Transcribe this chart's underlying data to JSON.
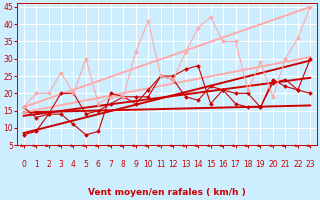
{
  "background_color": "#cceeff",
  "grid_color": "#ffffff",
  "xlabel": "Vent moyen/en rafales ( km/h )",
  "ylabel_ticks": [
    5,
    10,
    15,
    20,
    25,
    30,
    35,
    40,
    45
  ],
  "xlim": [
    -0.5,
    23.5
  ],
  "ylim": [
    5,
    46
  ],
  "x_ticks": [
    0,
    1,
    2,
    3,
    4,
    5,
    6,
    7,
    8,
    9,
    10,
    11,
    12,
    13,
    14,
    15,
    16,
    17,
    18,
    19,
    20,
    21,
    22,
    23
  ],
  "series": [
    {
      "x": [
        0,
        1,
        2,
        3,
        4,
        5,
        6,
        7,
        8,
        9,
        10,
        11,
        12,
        13,
        14,
        15,
        16,
        17,
        18,
        19,
        20,
        21,
        22,
        23
      ],
      "y": [
        8,
        9,
        14,
        14,
        11,
        8,
        9,
        20,
        19,
        17,
        21,
        25,
        25,
        27,
        28,
        17,
        21,
        20,
        20,
        16,
        24,
        22,
        21,
        30
      ],
      "color": "#cc0000",
      "lw": 0.8,
      "marker": "D",
      "ms": 2.0
    },
    {
      "x": [
        0,
        1,
        2,
        3,
        4,
        5,
        6,
        7,
        8,
        9,
        10,
        11,
        12,
        13,
        14,
        15,
        16,
        17,
        18,
        19,
        20,
        21,
        22,
        23
      ],
      "y": [
        16,
        13,
        14,
        20,
        20,
        14,
        15,
        17,
        19,
        19,
        19,
        25,
        24,
        19,
        18,
        22,
        21,
        17,
        16,
        16,
        23,
        24,
        21,
        20
      ],
      "color": "#cc0000",
      "lw": 0.8,
      "marker": "D",
      "ms": 2.0
    },
    {
      "x": [
        0,
        1,
        2,
        3,
        4,
        5,
        6,
        7,
        8,
        9,
        10,
        11,
        12,
        13,
        14,
        15,
        16,
        17,
        18,
        19,
        20,
        21,
        22,
        23
      ],
      "y": [
        16,
        20,
        20,
        26,
        20,
        30,
        17,
        19,
        19,
        32,
        41,
        25,
        24,
        32,
        39,
        42,
        35,
        35,
        21,
        29,
        19,
        30,
        36,
        45
      ],
      "color": "#ffaaaa",
      "lw": 0.8,
      "marker": "D",
      "ms": 2.0
    },
    {
      "x": [
        0,
        23
      ],
      "y": [
        8.5,
        29.5
      ],
      "color": "#cc0000",
      "lw": 1.4,
      "marker": null,
      "ms": 0
    },
    {
      "x": [
        0,
        23
      ],
      "y": [
        13.5,
        24.5
      ],
      "color": "#cc0000",
      "lw": 1.4,
      "marker": null,
      "ms": 0
    },
    {
      "x": [
        0,
        23
      ],
      "y": [
        14.5,
        16.5
      ],
      "color": "#cc0000",
      "lw": 1.4,
      "marker": null,
      "ms": 0
    },
    {
      "x": [
        0,
        23
      ],
      "y": [
        16.0,
        45.0
      ],
      "color": "#ffaaaa",
      "lw": 1.4,
      "marker": null,
      "ms": 0
    },
    {
      "x": [
        0,
        23
      ],
      "y": [
        14.5,
        30.5
      ],
      "color": "#ffaaaa",
      "lw": 1.4,
      "marker": null,
      "ms": 0
    }
  ],
  "arrow_color": "#cc0000",
  "xlabel_color": "#cc0000",
  "tick_color": "#cc0000",
  "label_fontsize": 6.5,
  "tick_fontsize": 5.5
}
